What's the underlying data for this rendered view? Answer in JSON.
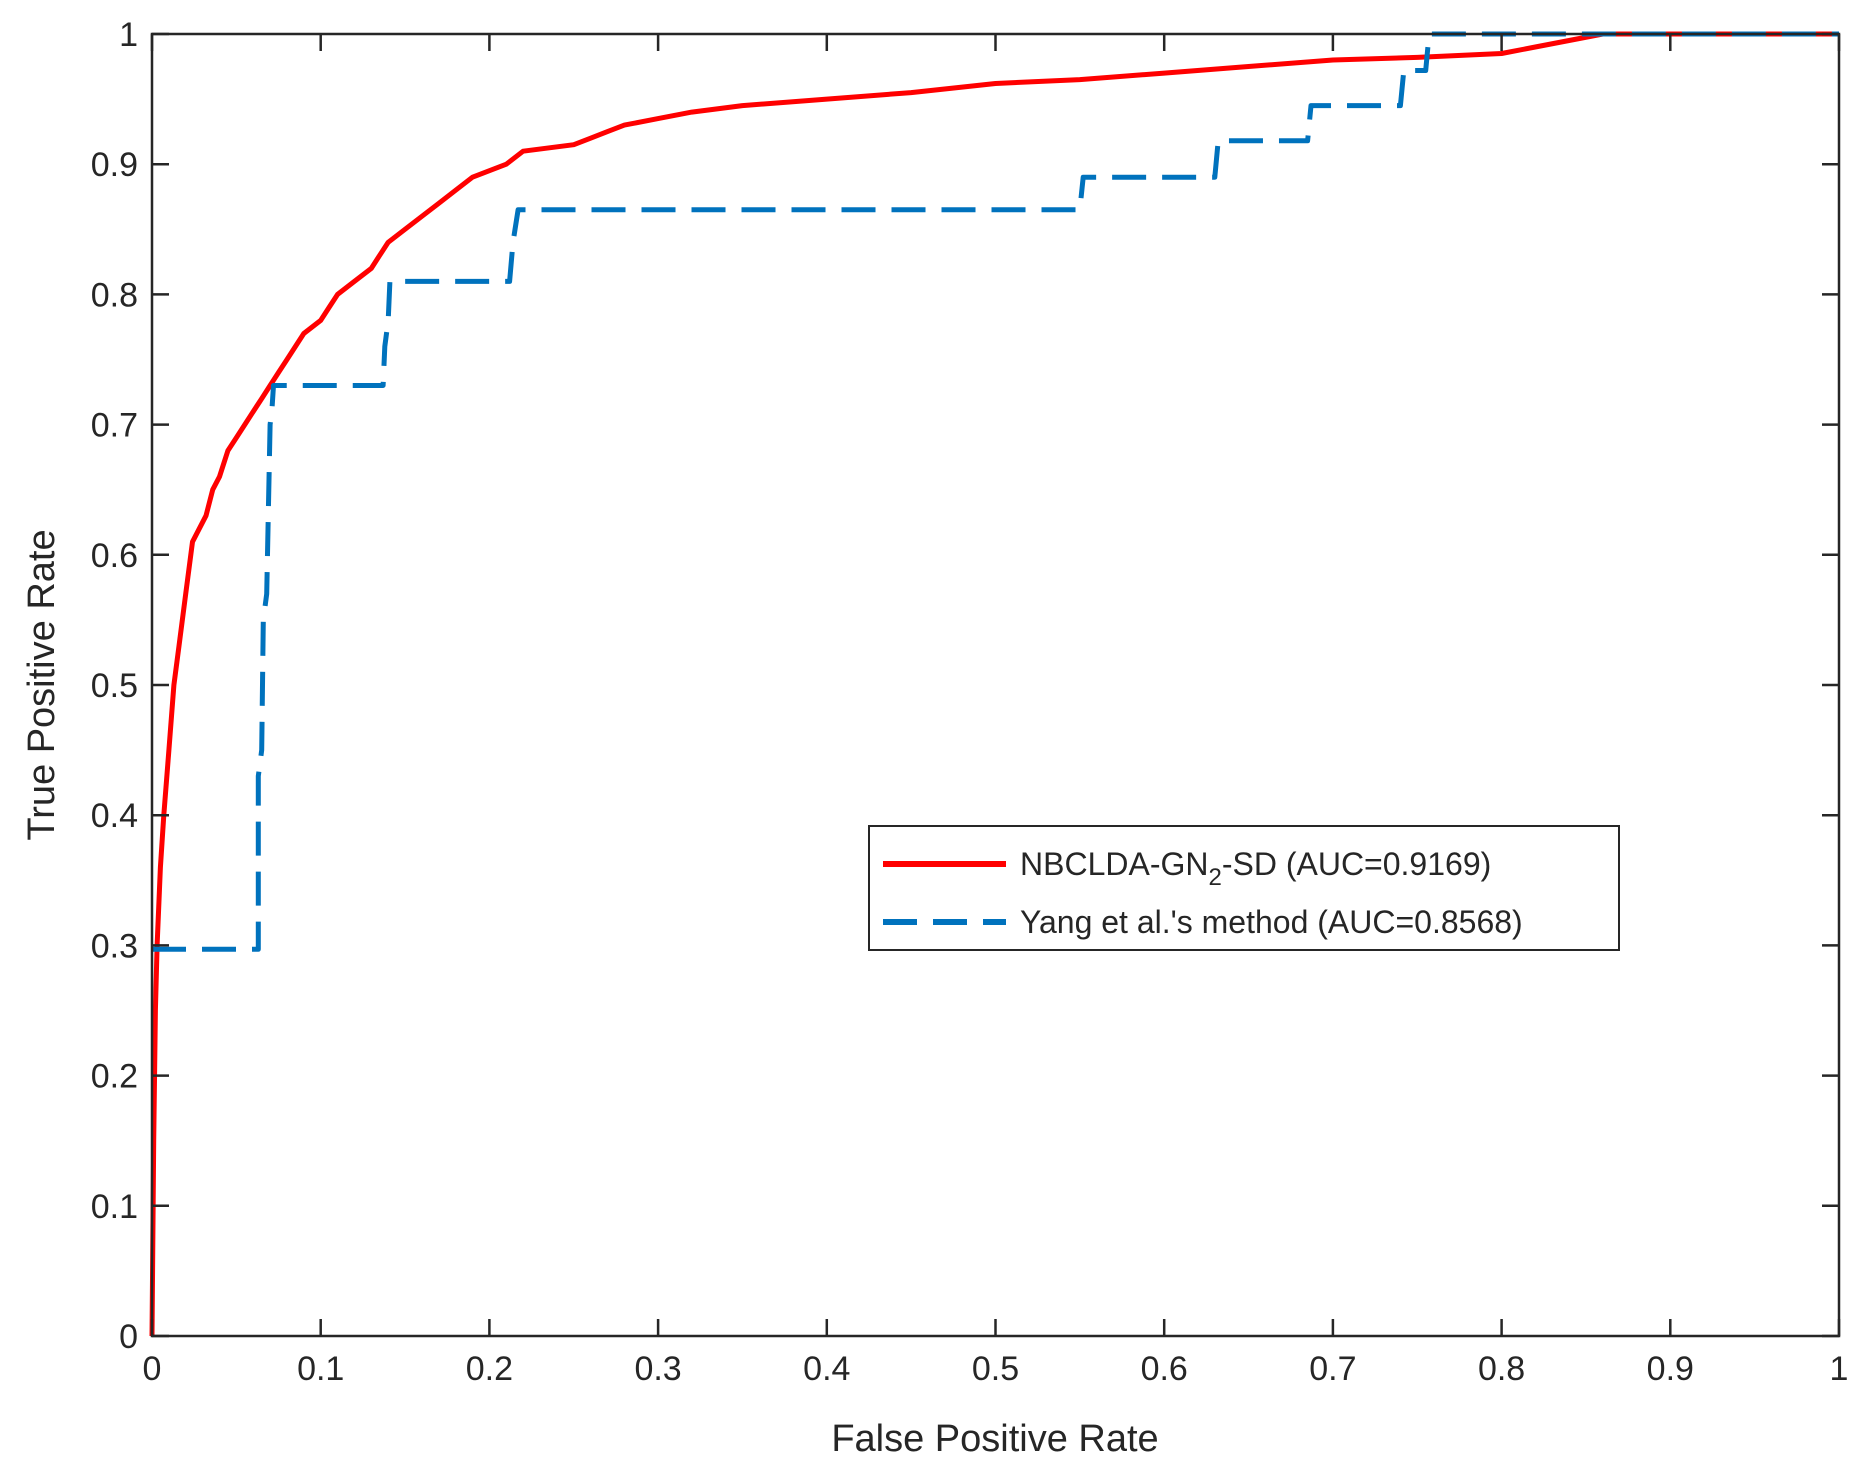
{
  "chart_data": {
    "type": "line",
    "title": "",
    "xlabel": "False Positive Rate",
    "ylabel": "True Positive Rate",
    "xlim": [
      0,
      1
    ],
    "ylim": [
      0,
      1
    ],
    "grid": false,
    "legend_position": "center-right",
    "xticks": [
      0,
      0.1,
      0.2,
      0.3,
      0.4,
      0.5,
      0.6,
      0.7,
      0.8,
      0.9,
      1
    ],
    "xtick_labels": [
      "0",
      "0.1",
      "0.2",
      "0.3",
      "0.4",
      "0.5",
      "0.6",
      "0.7",
      "0.8",
      "0.9",
      "1"
    ],
    "yticks": [
      0,
      0.1,
      0.2,
      0.3,
      0.4,
      0.5,
      0.6,
      0.7,
      0.8,
      0.9,
      1
    ],
    "ytick_labels": [
      "0",
      "0.1",
      "0.2",
      "0.3",
      "0.4",
      "0.5",
      "0.6",
      "0.7",
      "0.8",
      "0.9",
      "1"
    ],
    "series": [
      {
        "name": "NBCLDA-GN2-SD (AUC=0.9169)",
        "legend_main": "NBCLDA-GN",
        "legend_sub": "2",
        "legend_rest": "-SD (AUC=0.9169)",
        "color": "#ff0000",
        "style": "solid",
        "x": [
          0,
          0.001,
          0.002,
          0.003,
          0.005,
          0.007,
          0.01,
          0.013,
          0.016,
          0.02,
          0.024,
          0.028,
          0.032,
          0.036,
          0.04,
          0.045,
          0.05,
          0.055,
          0.06,
          0.065,
          0.07,
          0.075,
          0.08,
          0.085,
          0.09,
          0.1,
          0.105,
          0.11,
          0.115,
          0.12,
          0.13,
          0.135,
          0.14,
          0.15,
          0.16,
          0.17,
          0.18,
          0.19,
          0.2,
          0.21,
          0.22,
          0.25,
          0.26,
          0.27,
          0.28,
          0.3,
          0.32,
          0.35,
          0.4,
          0.45,
          0.5,
          0.55,
          0.6,
          0.65,
          0.7,
          0.75,
          0.8,
          0.82,
          0.84,
          0.86,
          0.87,
          1.0
        ],
        "y": [
          0,
          0.15,
          0.25,
          0.3,
          0.36,
          0.4,
          0.45,
          0.5,
          0.53,
          0.57,
          0.61,
          0.62,
          0.63,
          0.65,
          0.66,
          0.68,
          0.69,
          0.7,
          0.71,
          0.72,
          0.73,
          0.74,
          0.75,
          0.76,
          0.77,
          0.78,
          0.79,
          0.8,
          0.805,
          0.81,
          0.82,
          0.83,
          0.84,
          0.85,
          0.86,
          0.87,
          0.88,
          0.89,
          0.895,
          0.9,
          0.91,
          0.915,
          0.92,
          0.925,
          0.93,
          0.935,
          0.94,
          0.945,
          0.95,
          0.955,
          0.962,
          0.965,
          0.97,
          0.975,
          0.98,
          0.982,
          0.985,
          0.99,
          0.995,
          1.0,
          1.0,
          1.0
        ]
      },
      {
        "name": "Yang et al.'s method (AUC=0.8568)",
        "legend_main": "Yang et al.'s method (AUC=0.8568)",
        "color": "#0072bd",
        "style": "dashed",
        "x": [
          0,
          0.063,
          0.063,
          0.065,
          0.066,
          0.068,
          0.07,
          0.071,
          0.072,
          0.073,
          0.137,
          0.138,
          0.14,
          0.141,
          0.143,
          0.212,
          0.214,
          0.217,
          0.55,
          0.552,
          0.63,
          0.632,
          0.685,
          0.687,
          0.74,
          0.742,
          0.755,
          0.757,
          1.0
        ],
        "y": [
          0.297,
          0.297,
          0.43,
          0.45,
          0.55,
          0.57,
          0.7,
          0.71,
          0.73,
          0.73,
          0.73,
          0.76,
          0.78,
          0.81,
          0.81,
          0.81,
          0.84,
          0.865,
          0.865,
          0.89,
          0.89,
          0.918,
          0.918,
          0.945,
          0.945,
          0.972,
          0.972,
          1.0,
          1.0
        ]
      }
    ]
  }
}
